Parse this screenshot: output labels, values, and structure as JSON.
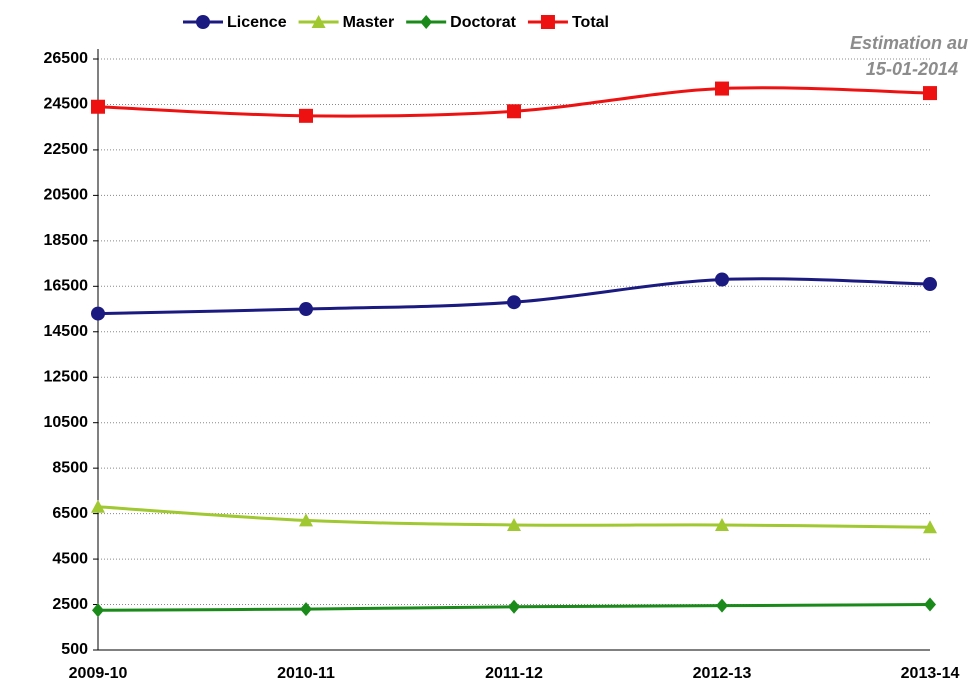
{
  "chart_data": {
    "type": "line",
    "categories": [
      "2009-10",
      "2010-11",
      "2011-12",
      "2012-13",
      "2013-14"
    ],
    "series": [
      {
        "name": "Licence",
        "color": "#1a1a80",
        "marker": "circle",
        "values": [
          15300,
          15500,
          15800,
          16800,
          16600
        ]
      },
      {
        "name": "Master",
        "color": "#a0c830",
        "marker": "triangle",
        "values": [
          6800,
          6200,
          6000,
          6000,
          5900
        ]
      },
      {
        "name": "Doctorat",
        "color": "#1a8a1a",
        "marker": "diamond",
        "values": [
          2250,
          2300,
          2400,
          2450,
          2500
        ]
      },
      {
        "name": "Total",
        "color": "#ee1111",
        "marker": "square",
        "values": [
          24400,
          24000,
          24200,
          25200,
          25000
        ]
      }
    ],
    "annotation": [
      "Estimation au",
      "15-01-2014"
    ],
    "ylim": [
      500,
      26500
    ],
    "yticks": [
      500,
      2500,
      4500,
      6500,
      8500,
      10500,
      12500,
      14500,
      16500,
      18500,
      20500,
      22500,
      24500,
      26500
    ],
    "grid": true,
    "legend": "top",
    "smooth": true
  }
}
